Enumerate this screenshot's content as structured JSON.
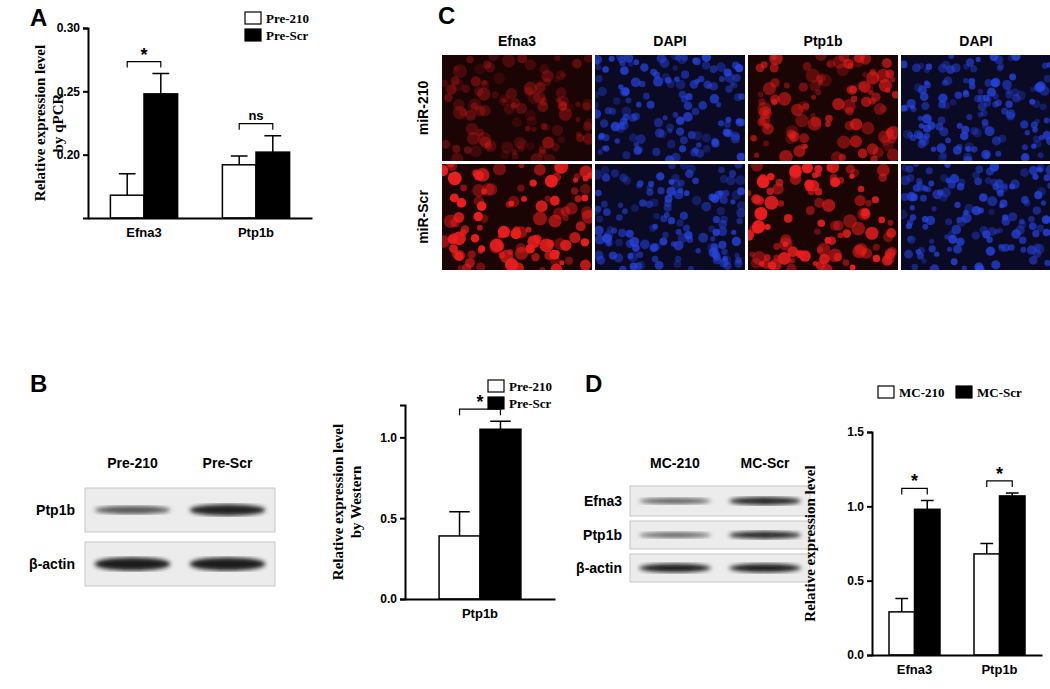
{
  "chart_data": [
    {
      "type": "bar",
      "title": "A",
      "ylabel": [
        "Relative expression level",
        "by qPCR"
      ],
      "categories": [
        "Efna3",
        "Ptp1b"
      ],
      "series": [
        {
          "name": "Pre-210",
          "color": "#ffffff",
          "values": [
            0.168,
            0.192
          ],
          "errors": [
            0.017,
            0.007
          ]
        },
        {
          "name": "Pre-Scr",
          "color": "#000000",
          "values": [
            0.248,
            0.202
          ],
          "errors": [
            0.016,
            0.013
          ]
        }
      ],
      "ylim": [
        0.15,
        0.3
      ],
      "yticks": [
        {
          "value": 0.2,
          "label": "0.20"
        },
        {
          "value": 0.25,
          "label": "0.25"
        },
        {
          "value": 0.3,
          "label": "0.30"
        }
      ],
      "legend": "top-right",
      "annotations": [
        {
          "text": "*",
          "category": "Efna3"
        },
        {
          "text": "ns",
          "category": "Ptp1b"
        }
      ]
    },
    {
      "type": "blot",
      "title": "B",
      "lanes": [
        "Pre-210",
        "Pre-Scr"
      ],
      "rows": [
        "Ptp1b",
        "β-actin"
      ]
    },
    {
      "type": "bar",
      "ylabel": [
        "Relative expression level",
        "by Western"
      ],
      "categories": [
        "Ptp1b"
      ],
      "series": [
        {
          "name": "Pre-210",
          "color": "#ffffff",
          "values": [
            0.39
          ],
          "errors": [
            0.15
          ]
        },
        {
          "name": "Pre-Scr",
          "color": "#000000",
          "values": [
            1.05
          ],
          "errors": [
            0.05
          ]
        }
      ],
      "ylim": [
        0,
        1.2
      ],
      "yticks": [
        {
          "value": 0,
          "label": "0.0"
        },
        {
          "value": 0.5,
          "label": "0.5"
        },
        {
          "value": 1,
          "label": "1.0"
        }
      ],
      "legend": "top-right",
      "annotations": [
        {
          "text": "*",
          "category": "Ptp1b"
        }
      ]
    },
    {
      "type": "micrograph",
      "title": "C",
      "columns": [
        "Efna3",
        "DAPI",
        "Ptp1b",
        "DAPI"
      ],
      "rows": [
        "miR-210",
        "miR-Scr"
      ]
    },
    {
      "type": "blot",
      "title": "D",
      "lanes": [
        "MC-210",
        "MC-Scr"
      ],
      "rows": [
        "Efna3",
        "Ptp1b",
        "β-actin"
      ]
    },
    {
      "type": "bar",
      "ylabel": [
        "Relative expression level"
      ],
      "categories": [
        "Efna3",
        "Ptp1b"
      ],
      "series": [
        {
          "name": "MC-210",
          "color": "#ffffff",
          "values": [
            0.29,
            0.68
          ],
          "errors": [
            0.09,
            0.07
          ]
        },
        {
          "name": "MC-Scr",
          "color": "#000000",
          "values": [
            0.98,
            1.07
          ],
          "errors": [
            0.06,
            0.02
          ]
        }
      ],
      "ylim": [
        0,
        1.5
      ],
      "yticks": [
        {
          "value": 0,
          "label": "0.0"
        },
        {
          "value": 0.5,
          "label": "0.5"
        },
        {
          "value": 1,
          "label": "1.0"
        },
        1.5
      ],
      "legend": "top",
      "annotations": [
        {
          "text": "*",
          "category": "Efna3"
        },
        {
          "text": "*",
          "category": "Ptp1b"
        }
      ]
    }
  ]
}
